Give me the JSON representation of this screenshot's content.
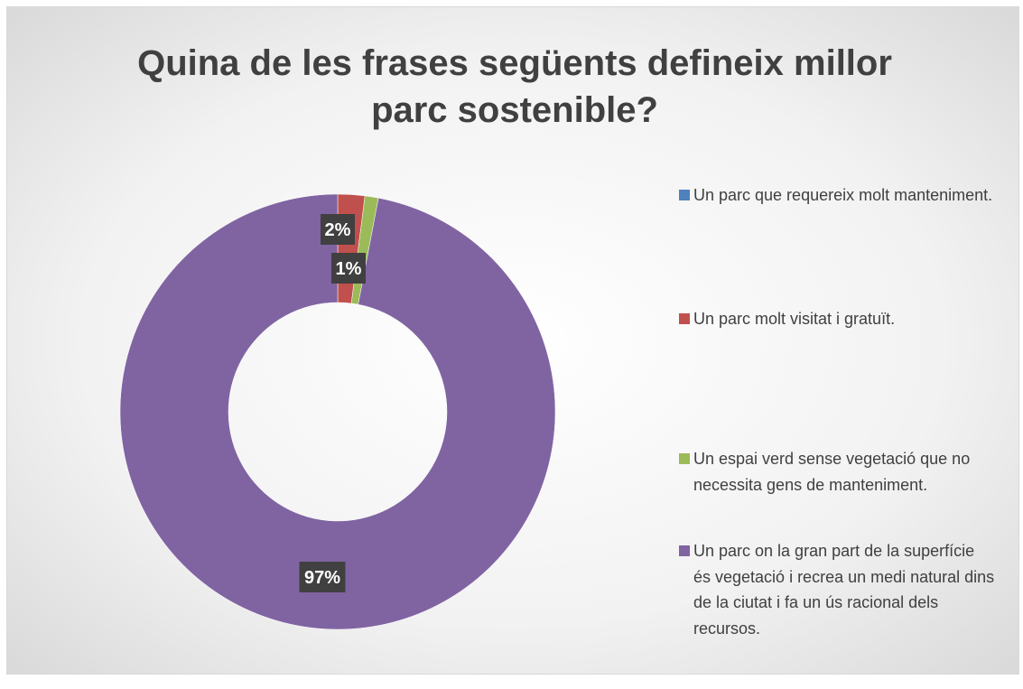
{
  "chart_data": {
    "type": "donut",
    "title": "Quina de les frases següents defineix millor parc sostenible?",
    "categories": [
      "Un parc que requereix molt manteniment.",
      "Un parc molt visitat i gratuït.",
      "Un espai verd sense vegetació que no necessita gens de manteniment.",
      "Un parc on la gran part de la superfície és vegetació i recrea un medi natural dins de la ciutat i fa un ús racional dels recursos."
    ],
    "values": [
      0,
      2,
      1,
      97
    ],
    "value_labels": [
      null,
      "2%",
      "1%",
      "97%"
    ],
    "colors": [
      "#4f81bd",
      "#c0504d",
      "#9bbb59",
      "#8064a2"
    ],
    "legend": "right"
  }
}
